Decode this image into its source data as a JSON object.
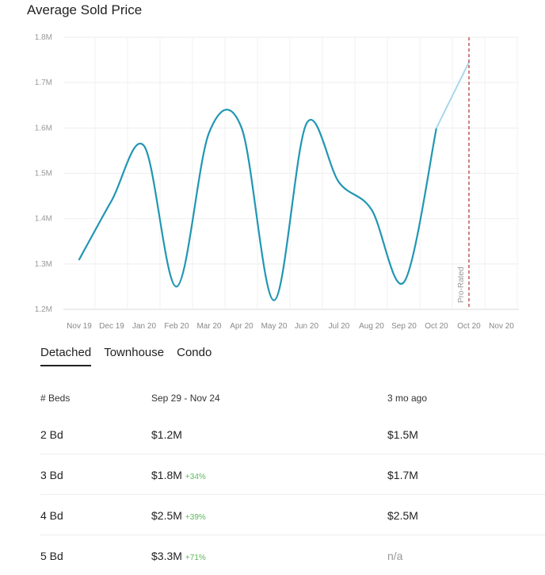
{
  "title": "Average Sold Price",
  "chart_data": {
    "type": "line",
    "title": "Average Sold Price",
    "y_ticks": [
      "1.2M",
      "1.3M",
      "1.4M",
      "1.5M",
      "1.6M",
      "1.7M",
      "1.8M"
    ],
    "ylim": [
      1200000,
      1800000
    ],
    "x_ticks": [
      "Nov 19",
      "Dec 19",
      "Jan 20",
      "Feb 20",
      "Mar 20",
      "Apr 20",
      "May 20",
      "Jun 20",
      "Jul 20",
      "Aug 20",
      "Sep 20",
      "Oct 20",
      "Oct 20",
      "Nov 20"
    ],
    "series": [
      {
        "values": [
          1310000,
          1440000,
          1560000,
          1250000,
          1590000,
          1600000,
          1220000,
          1610000,
          1480000,
          1420000,
          1260000,
          1600000
        ],
        "style": "solid",
        "color": "#2196b3"
      },
      {
        "values_start_index": 11,
        "values": [
          1600000,
          1745000
        ],
        "style": "projected",
        "color": "#a8d8ea"
      }
    ],
    "marker_label": "Pro-Rated",
    "marker_index": 11,
    "marker_color": "#b03030",
    "grid": true
  },
  "tabs": [
    {
      "label": "Detached",
      "active": true
    },
    {
      "label": "Townhouse",
      "active": false
    },
    {
      "label": "Condo",
      "active": false
    }
  ],
  "table": {
    "headers": [
      "# Beds",
      "Sep 29 - Nov 24",
      "3 mo ago"
    ],
    "rows": [
      {
        "beds": "2 Bd",
        "current": "$1.2M",
        "change": "",
        "prior": "$1.5M"
      },
      {
        "beds": "3 Bd",
        "current": "$1.8M",
        "change": "+34%",
        "prior": "$1.7M"
      },
      {
        "beds": "4 Bd",
        "current": "$2.5M",
        "change": "+39%",
        "prior": "$2.5M"
      },
      {
        "beds": "5 Bd",
        "current": "$3.3M",
        "change": "+71%",
        "prior": "n/a"
      }
    ]
  }
}
